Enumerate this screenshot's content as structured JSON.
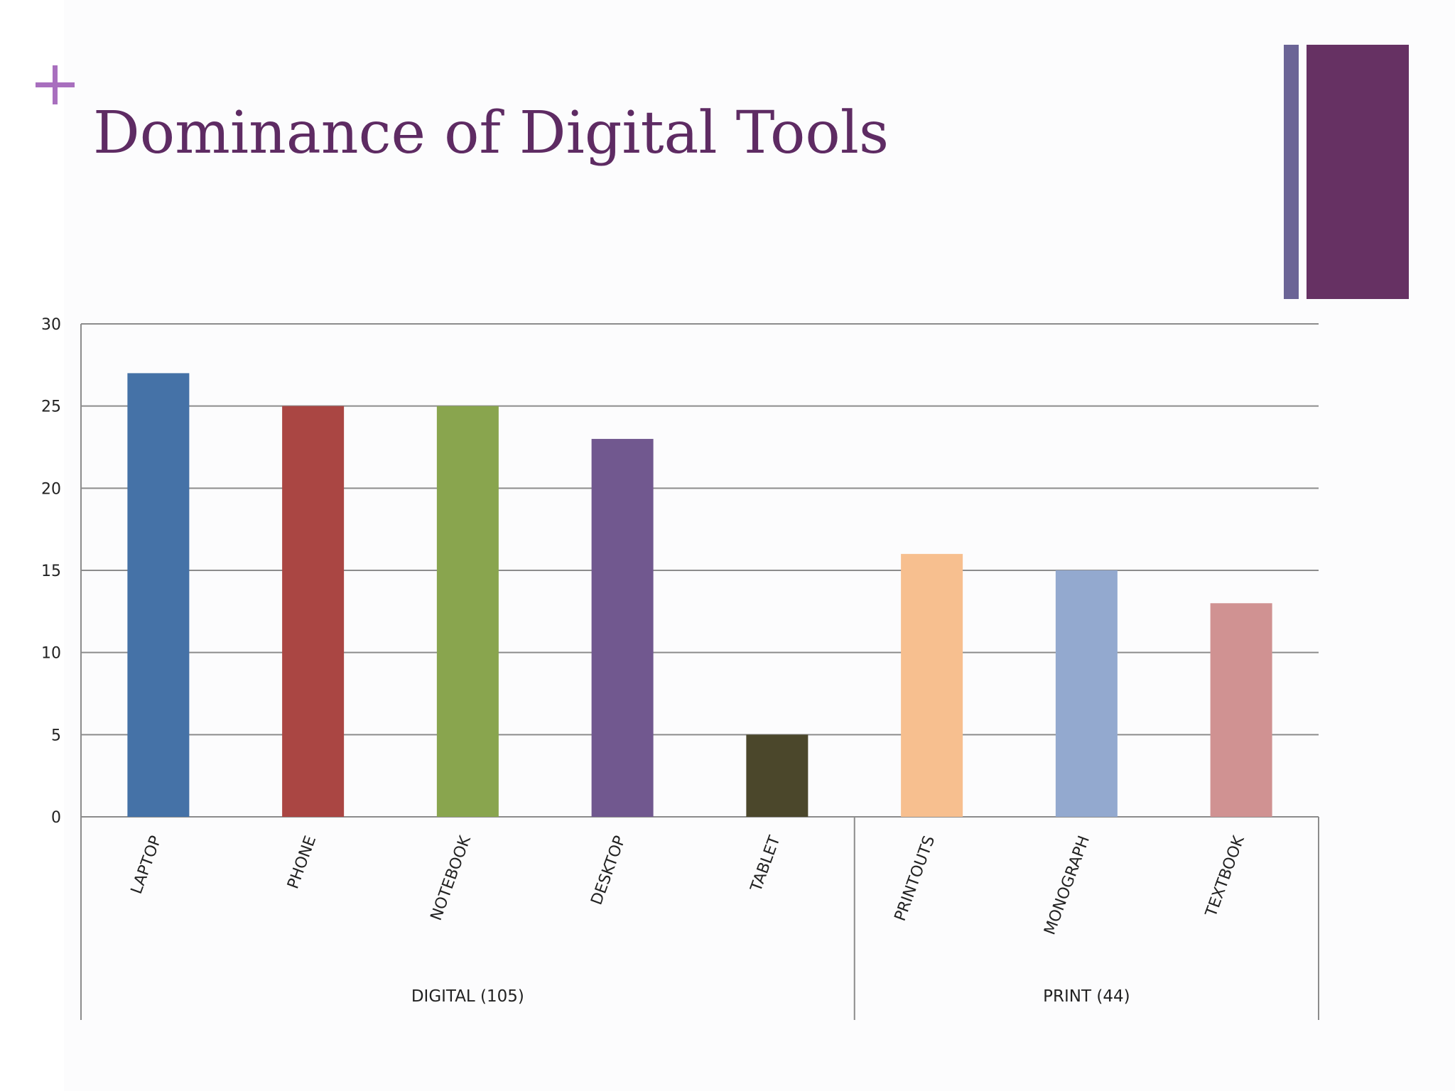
{
  "slide": {
    "title": "Dominance of Digital Tools",
    "accent_color": "#a86fbe",
    "title_color": "#5e2b63",
    "decoration_colors": [
      "#6b6496",
      "#663163"
    ]
  },
  "chart_data": {
    "type": "bar",
    "title": "",
    "xlabel": "",
    "ylabel": "",
    "ylim": [
      0,
      30
    ],
    "yticks": [
      0,
      5,
      10,
      15,
      20,
      25,
      30
    ],
    "grid": true,
    "categories": [
      "LAPTOP",
      "PHONE",
      "NOTEBOOK",
      "DESKTOP",
      "TABLET",
      "PRINTOUTS",
      "MONOGRAPH",
      "TEXTBOOK"
    ],
    "values": [
      27,
      25,
      25,
      23,
      5,
      16,
      15,
      13
    ],
    "colors": [
      "#4572a7",
      "#aa4643",
      "#89a54e",
      "#71588f",
      "#4b472b",
      "#f7bf8f",
      "#93a9cf",
      "#d09292"
    ],
    "groups": [
      {
        "label": "DIGITAL (105)",
        "categories": [
          "LAPTOP",
          "PHONE",
          "NOTEBOOK",
          "DESKTOP",
          "TABLET"
        ]
      },
      {
        "label": "PRINT (44)",
        "categories": [
          "PRINTOUTS",
          "MONOGRAPH",
          "TEXTBOOK"
        ]
      }
    ]
  }
}
